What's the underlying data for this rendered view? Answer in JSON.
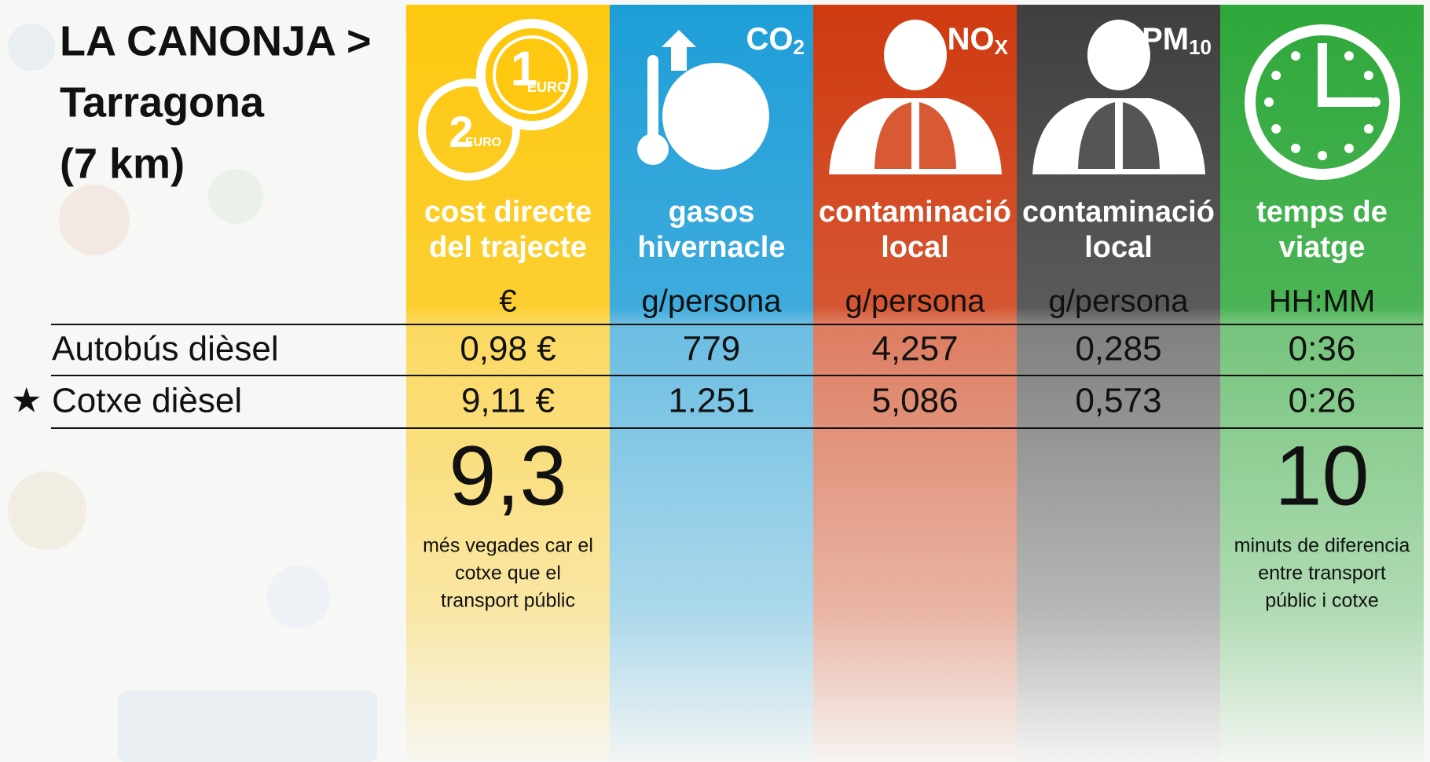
{
  "title": [
    "LA CANONJA >",
    "Tarragona",
    "(7 km)"
  ],
  "columns": [
    {
      "label": [
        "cost directe",
        "del trajecte"
      ],
      "unit": "€",
      "color": "#fdc80f",
      "icon": {
        "coins": [
          "1",
          "EURO",
          "2",
          "EURO"
        ]
      }
    },
    {
      "label": [
        "gasos",
        "hivernacle"
      ],
      "unit": "g/persona",
      "color": "#1e9ed8",
      "icon": {
        "main": "CO",
        "sub": "2"
      }
    },
    {
      "label": [
        "contaminació",
        "local"
      ],
      "unit": "g/persona",
      "color": "#cf3a10",
      "icon": {
        "main": "NO",
        "sub": "X"
      }
    },
    {
      "label": [
        "contaminació",
        "local"
      ],
      "unit": "g/persona",
      "color": "#3f3f3f",
      "icon": {
        "main": "PM",
        "sub": "10"
      }
    },
    {
      "label": [
        "temps de",
        "viatge"
      ],
      "unit": "HH:MM",
      "color": "#2ea83a",
      "icon": {}
    }
  ],
  "rows": [
    {
      "label": "Autobús dièsel",
      "values": [
        "0,98 €",
        "779",
        "4,257",
        "0,285",
        "0:36"
      ]
    },
    {
      "marker": "★",
      "label": "Cotxe dièsel",
      "values": [
        "9,11 €",
        "1.251",
        "5,086",
        "0,573",
        "0:26"
      ]
    }
  ],
  "summary": [
    {
      "column": 0,
      "value": "9,3",
      "caption": [
        "més vegades car el",
        "cotxe que el",
        "transport públic"
      ]
    },
    {
      "column": 4,
      "value": "10",
      "caption": [
        "minuts de diferencia",
        "entre transport",
        "públic i cotxe"
      ]
    }
  ]
}
